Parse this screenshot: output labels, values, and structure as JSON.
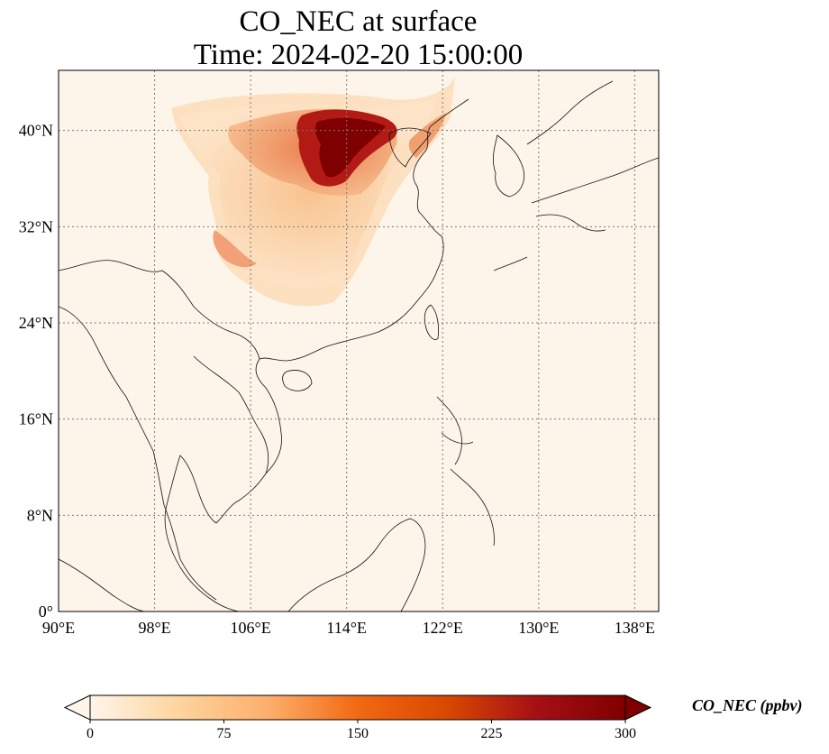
{
  "title_line1": "CO_NEC at surface",
  "title_line2": "Time: 2024-02-20 15:00:00",
  "map": {
    "lon_range": [
      90,
      140
    ],
    "lat_range": [
      0,
      45
    ],
    "lon_ticks": [
      {
        "value": 90,
        "label": "90°E"
      },
      {
        "value": 98,
        "label": "98°E"
      },
      {
        "value": 106,
        "label": "106°E"
      },
      {
        "value": 114,
        "label": "114°E"
      },
      {
        "value": 122,
        "label": "122°E"
      },
      {
        "value": 130,
        "label": "130°E"
      },
      {
        "value": 138,
        "label": "138°E"
      }
    ],
    "lat_ticks": [
      {
        "value": 0,
        "label": "0°"
      },
      {
        "value": 8,
        "label": "8°N"
      },
      {
        "value": 16,
        "label": "16°N"
      },
      {
        "value": 24,
        "label": "24°N"
      },
      {
        "value": 32,
        "label": "32°N"
      },
      {
        "value": 40,
        "label": "40°N"
      }
    ],
    "background_color": "#fef5ea",
    "gridline_color": "#7a7a7a"
  },
  "colorbar": {
    "title": "CO_NEC (ppbv)",
    "min": 0,
    "max": 300,
    "extend": "both",
    "colors": [
      "#fff5eb",
      "#fdd49e",
      "#fdae6b",
      "#f16913",
      "#d94801",
      "#a50f15",
      "#7f0000"
    ],
    "ticks": [
      {
        "value": 0,
        "label": "0"
      },
      {
        "value": 75,
        "label": "75"
      },
      {
        "value": 150,
        "label": "150"
      },
      {
        "value": 225,
        "label": "225"
      },
      {
        "value": 300,
        "label": "300"
      }
    ]
  }
}
